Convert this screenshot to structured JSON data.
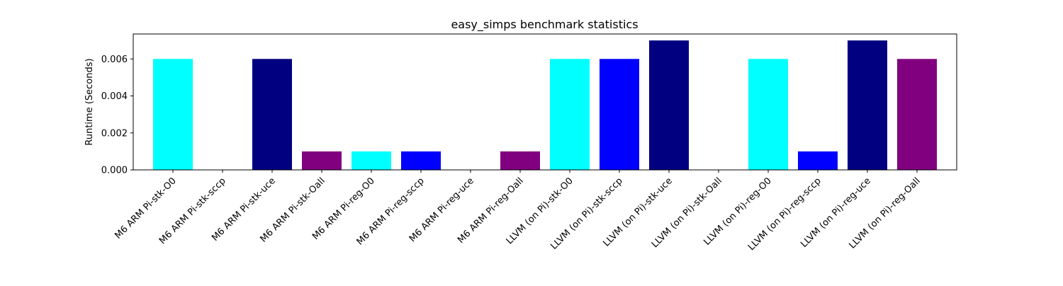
{
  "chart_data": {
    "type": "bar",
    "title": "easy_simps benchmark statistics",
    "xlabel": "",
    "ylabel": "Runtime (Seconds)",
    "ylim": [
      0,
      0.00735
    ],
    "yticks": [
      0.0,
      0.002,
      0.004,
      0.006
    ],
    "ytick_labels": [
      "0.000",
      "0.002",
      "0.004",
      "0.006"
    ],
    "grid": false,
    "categories": [
      "M6 ARM Pi-stk-O0",
      "M6 ARM Pi-stk-sccp",
      "M6 ARM Pi-stk-uce",
      "M6 ARM Pi-stk-Oall",
      "M6 ARM Pi-reg-O0",
      "M6 ARM Pi-reg-sccp",
      "M6 ARM Pi-reg-uce",
      "M6 ARM Pi-reg-Oall",
      "LLVM (on Pi)-stk-O0",
      "LLVM (on Pi)-stk-sccp",
      "LLVM (on Pi)-stk-uce",
      "LLVM (on Pi)-stk-Oall",
      "LLVM (on Pi)-reg-O0",
      "LLVM (on Pi)-reg-sccp",
      "LLVM (on Pi)-reg-uce",
      "LLVM (on Pi)-reg-Oall"
    ],
    "values": [
      0.006,
      0.0,
      0.006,
      0.001,
      0.001,
      0.001,
      0.0,
      0.001,
      0.006,
      0.006,
      0.007,
      0.0,
      0.006,
      0.001,
      0.007,
      0.006
    ],
    "colors": [
      "#00ffff",
      "#0000ff",
      "#000080",
      "#800080",
      "#00ffff",
      "#0000ff",
      "#000080",
      "#800080",
      "#00ffff",
      "#0000ff",
      "#000080",
      "#800080",
      "#00ffff",
      "#0000ff",
      "#000080",
      "#800080"
    ]
  }
}
